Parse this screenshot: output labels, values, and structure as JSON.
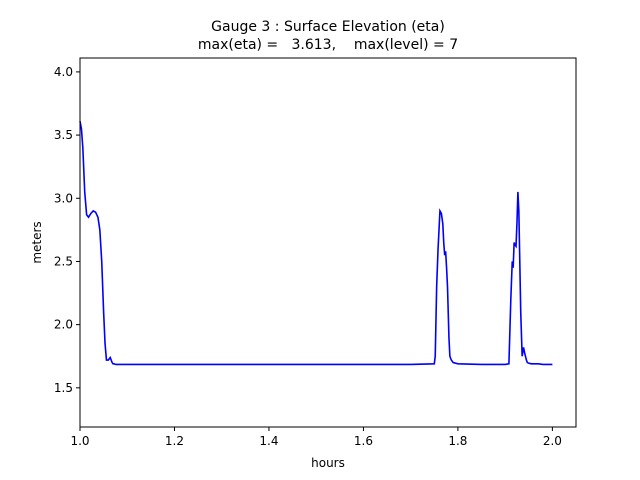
{
  "chart_data": {
    "type": "line",
    "title": "Gauge 3 : Surface Elevation (eta)",
    "subtitle": "max(eta) =   3.613,    max(level) = 7",
    "xlabel": "hours",
    "ylabel": "meters",
    "xlim": [
      1.0,
      2.05
    ],
    "ylim": [
      1.19,
      4.11
    ],
    "xticks": [
      1.0,
      1.2,
      1.4,
      1.6,
      1.8,
      2.0
    ],
    "xtick_labels": [
      "1.0",
      "1.2",
      "1.4",
      "1.6",
      "1.8",
      "2.0"
    ],
    "yticks": [
      1.5,
      2.0,
      2.5,
      3.0,
      3.5,
      4.0
    ],
    "ytick_labels": [
      "1.5",
      "2.0",
      "2.5",
      "3.0",
      "3.5",
      "4.0"
    ],
    "grid": false,
    "series": [
      {
        "color": "#0000ff",
        "x": [
          1.0,
          1.003,
          1.006,
          1.01,
          1.014,
          1.018,
          1.023,
          1.028,
          1.033,
          1.038,
          1.042,
          1.046,
          1.05,
          1.053,
          1.056,
          1.06,
          1.064,
          1.066,
          1.068,
          1.07,
          1.072,
          1.076,
          1.08,
          1.09,
          1.1,
          1.2,
          1.4,
          1.6,
          1.7,
          1.75,
          1.752,
          1.755,
          1.758,
          1.762,
          1.765,
          1.768,
          1.77,
          1.772,
          1.774,
          1.776,
          1.778,
          1.781,
          1.783,
          1.786,
          1.79,
          1.8,
          1.85,
          1.9,
          1.908,
          1.912,
          1.915,
          1.917,
          1.919,
          1.921,
          1.923,
          1.925,
          1.927,
          1.929,
          1.931,
          1.933,
          1.936,
          1.939,
          1.941,
          1.943,
          1.945,
          1.947,
          1.95,
          1.955,
          1.96,
          1.97,
          1.98,
          2.0
        ],
        "y": [
          3.61,
          3.55,
          3.4,
          3.05,
          2.87,
          2.85,
          2.88,
          2.9,
          2.89,
          2.85,
          2.75,
          2.5,
          2.1,
          1.85,
          1.72,
          1.72,
          1.74,
          1.72,
          1.7,
          1.69,
          1.69,
          1.685,
          1.685,
          1.685,
          1.685,
          1.685,
          1.685,
          1.685,
          1.685,
          1.69,
          1.75,
          2.3,
          2.6,
          2.9,
          2.88,
          2.8,
          2.65,
          2.55,
          2.58,
          2.45,
          2.3,
          1.9,
          1.75,
          1.72,
          1.7,
          1.69,
          1.685,
          1.685,
          1.69,
          2.2,
          2.5,
          2.45,
          2.65,
          2.63,
          2.62,
          2.8,
          3.05,
          2.9,
          2.5,
          2.1,
          1.75,
          1.82,
          1.78,
          1.75,
          1.72,
          1.7,
          1.695,
          1.69,
          1.69,
          1.69,
          1.685,
          1.685
        ]
      }
    ]
  }
}
